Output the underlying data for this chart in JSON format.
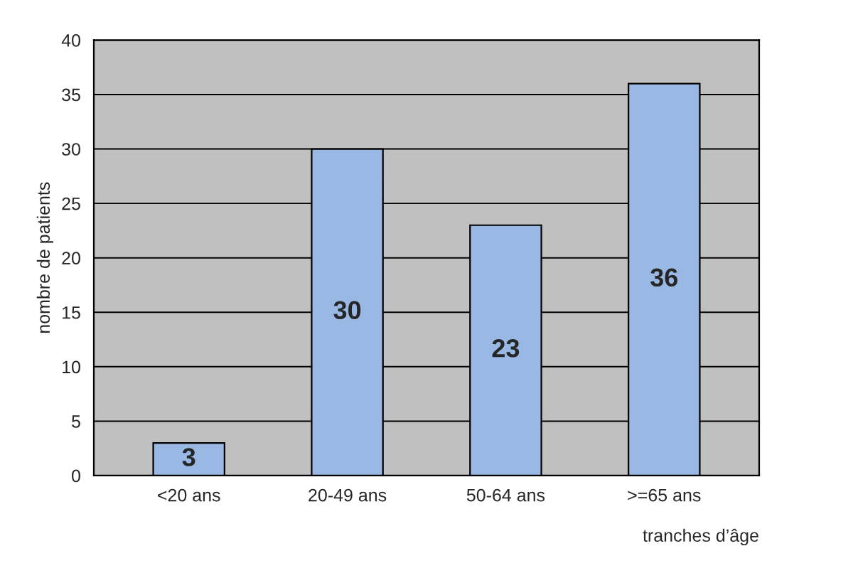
{
  "chart_data": {
    "type": "bar",
    "xlabel": "tranches d’âge",
    "ylabel": "nombre de patients",
    "categories": [
      "<20 ans",
      "20-49 ans",
      "50-64 ans",
      ">=65 ans"
    ],
    "values": [
      3,
      30,
      23,
      36
    ],
    "color": "#99b8e4",
    "ylim": [
      0,
      40
    ],
    "yticks": [
      0,
      5,
      10,
      15,
      20,
      25,
      30,
      35,
      40
    ],
    "grid": "y",
    "data_labels": true
  }
}
